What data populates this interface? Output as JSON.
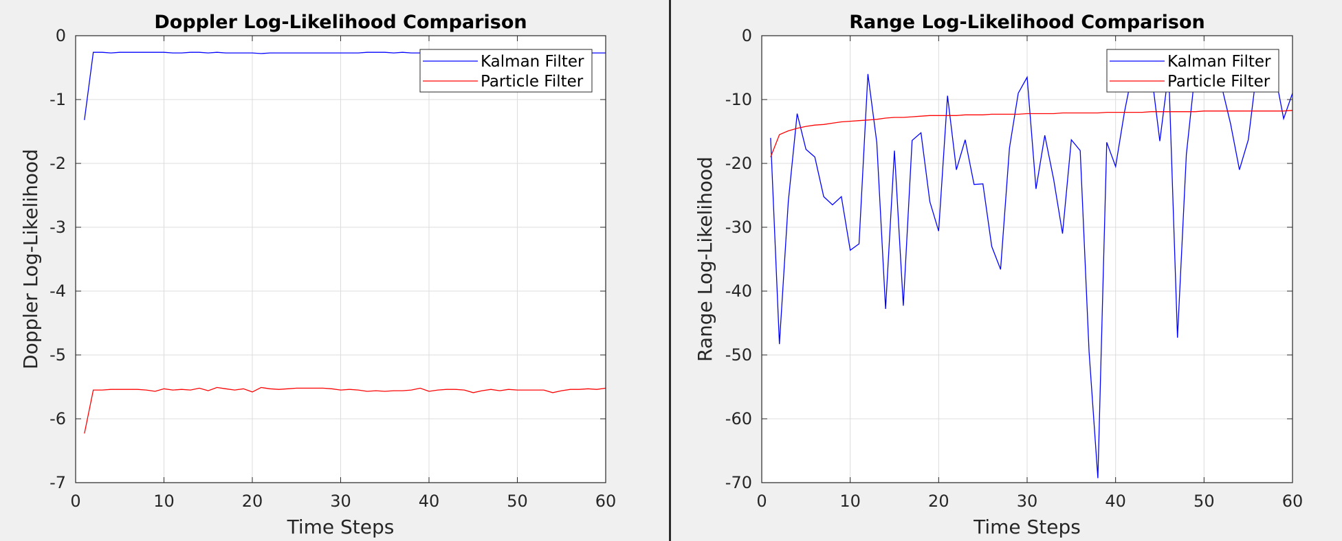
{
  "chart_data": [
    {
      "type": "line",
      "title": "Doppler Log-Likelihood Comparison",
      "xlabel": "Time Steps",
      "ylabel": "Doppler Log-Likelihood",
      "xlim": [
        0,
        60
      ],
      "ylim": [
        -7,
        0
      ],
      "xticks": [
        0,
        10,
        20,
        30,
        40,
        50,
        60
      ],
      "yticks": [
        0,
        -1,
        -2,
        -3,
        -4,
        -5,
        -6,
        -7
      ],
      "grid": true,
      "legend_position": "top-right",
      "series": [
        {
          "name": "Kalman Filter",
          "color": "#0000ff",
          "x": [
            1,
            2,
            3,
            4,
            5,
            6,
            7,
            8,
            9,
            10,
            11,
            12,
            13,
            14,
            15,
            16,
            17,
            18,
            19,
            20,
            21,
            22,
            23,
            24,
            25,
            26,
            27,
            28,
            29,
            30,
            31,
            32,
            33,
            34,
            35,
            36,
            37,
            38,
            39,
            40,
            41,
            42,
            43,
            44,
            45,
            46,
            47,
            48,
            49,
            50,
            51,
            52,
            53,
            54,
            55,
            56,
            57,
            58,
            59,
            60
          ],
          "values": [
            -1.32,
            -0.26,
            -0.26,
            -0.27,
            -0.26,
            -0.26,
            -0.26,
            -0.26,
            -0.26,
            -0.26,
            -0.27,
            -0.27,
            -0.26,
            -0.26,
            -0.27,
            -0.26,
            -0.27,
            -0.27,
            -0.27,
            -0.27,
            -0.28,
            -0.27,
            -0.27,
            -0.27,
            -0.27,
            -0.27,
            -0.27,
            -0.27,
            -0.27,
            -0.27,
            -0.27,
            -0.27,
            -0.26,
            -0.26,
            -0.26,
            -0.27,
            -0.26,
            -0.27,
            -0.27,
            -0.27,
            -0.27,
            -0.27,
            -0.27,
            -0.27,
            -0.27,
            -0.26,
            -0.27,
            -0.27,
            -0.27,
            -0.27,
            -0.27,
            -0.27,
            -0.27,
            -0.27,
            -0.27,
            -0.27,
            -0.27,
            -0.27,
            -0.27,
            -0.27
          ]
        },
        {
          "name": "Particle Filter",
          "color": "#ff0000",
          "x": [
            1,
            2,
            3,
            4,
            5,
            6,
            7,
            8,
            9,
            10,
            11,
            12,
            13,
            14,
            15,
            16,
            17,
            18,
            19,
            20,
            21,
            22,
            23,
            24,
            25,
            26,
            27,
            28,
            29,
            30,
            31,
            32,
            33,
            34,
            35,
            36,
            37,
            38,
            39,
            40,
            41,
            42,
            43,
            44,
            45,
            46,
            47,
            48,
            49,
            50,
            51,
            52,
            53,
            54,
            55,
            56,
            57,
            58,
            59,
            60
          ],
          "values": [
            -6.23,
            -5.55,
            -5.55,
            -5.54,
            -5.54,
            -5.54,
            -5.54,
            -5.55,
            -5.57,
            -5.53,
            -5.55,
            -5.54,
            -5.55,
            -5.52,
            -5.56,
            -5.51,
            -5.53,
            -5.55,
            -5.53,
            -5.58,
            -5.51,
            -5.53,
            -5.54,
            -5.53,
            -5.52,
            -5.52,
            -5.52,
            -5.52,
            -5.53,
            -5.55,
            -5.54,
            -5.55,
            -5.57,
            -5.56,
            -5.57,
            -5.56,
            -5.56,
            -5.55,
            -5.52,
            -5.57,
            -5.55,
            -5.54,
            -5.54,
            -5.55,
            -5.59,
            -5.56,
            -5.54,
            -5.56,
            -5.54,
            -5.55,
            -5.55,
            -5.55,
            -5.55,
            -5.59,
            -5.56,
            -5.54,
            -5.54,
            -5.53,
            -5.54,
            -5.52
          ]
        }
      ]
    },
    {
      "type": "line",
      "title": "Range Log-Likelihood Comparison",
      "xlabel": "Time Steps",
      "ylabel": "Range Log-Likelihood",
      "xlim": [
        0,
        60
      ],
      "ylim": [
        -70,
        0
      ],
      "xticks": [
        0,
        10,
        20,
        30,
        40,
        50,
        60
      ],
      "yticks": [
        0,
        -10,
        -20,
        -30,
        -40,
        -50,
        -60,
        -70
      ],
      "grid": true,
      "legend_position": "top-right",
      "series": [
        {
          "name": "Kalman Filter",
          "color": "#0000ff",
          "x": [
            1,
            2,
            3,
            4,
            5,
            6,
            7,
            8,
            9,
            10,
            11,
            12,
            13,
            14,
            15,
            16,
            17,
            18,
            19,
            20,
            21,
            22,
            23,
            24,
            25,
            26,
            27,
            28,
            29,
            30,
            31,
            32,
            33,
            34,
            35,
            36,
            37,
            38,
            39,
            40,
            41,
            42,
            43,
            44,
            45,
            46,
            47,
            48,
            49,
            50,
            51,
            52,
            53,
            54,
            55,
            56,
            57,
            58,
            59,
            60
          ],
          "values": [
            -16,
            -48.3,
            -26,
            -12.2,
            -17.8,
            -19,
            -25.2,
            -26.5,
            -25.2,
            -33.6,
            -32.6,
            -6,
            -16.7,
            -42.8,
            -18,
            -42.3,
            -16.4,
            -15.2,
            -26,
            -30.6,
            -9.4,
            -21,
            -16.3,
            -23.3,
            -23.2,
            -33,
            -36.6,
            -17.6,
            -9,
            -6.5,
            -24,
            -15.6,
            -22.5,
            -31,
            -16.3,
            -18,
            -49.5,
            -69.3,
            -16.7,
            -20.5,
            -12,
            -5,
            -5.5,
            -5.2,
            -16.5,
            -5.5,
            -47.3,
            -18.6,
            -5.5,
            -5,
            -5.5,
            -8,
            -13.8,
            -21,
            -16.3,
            -5,
            -5,
            -5.8,
            -13,
            -9
          ]
        },
        {
          "name": "Particle Filter",
          "color": "#ff0000",
          "x": [
            1,
            2,
            3,
            4,
            5,
            6,
            7,
            8,
            9,
            10,
            11,
            12,
            13,
            14,
            15,
            16,
            17,
            18,
            19,
            20,
            21,
            22,
            23,
            24,
            25,
            26,
            27,
            28,
            29,
            30,
            31,
            32,
            33,
            34,
            35,
            36,
            37,
            38,
            39,
            40,
            41,
            42,
            43,
            44,
            45,
            46,
            47,
            48,
            49,
            50,
            51,
            52,
            53,
            54,
            55,
            56,
            57,
            58,
            59,
            60
          ],
          "values": [
            -19,
            -15.5,
            -14.9,
            -14.5,
            -14.2,
            -14,
            -13.9,
            -13.7,
            -13.5,
            -13.4,
            -13.3,
            -13.2,
            -13.1,
            -12.9,
            -12.8,
            -12.8,
            -12.7,
            -12.6,
            -12.5,
            -12.5,
            -12.5,
            -12.5,
            -12.4,
            -12.4,
            -12.4,
            -12.3,
            -12.3,
            -12.3,
            -12.3,
            -12.2,
            -12.2,
            -12.2,
            -12.2,
            -12.1,
            -12.1,
            -12.1,
            -12.1,
            -12.1,
            -12.0,
            -12.0,
            -12.0,
            -12.0,
            -12.0,
            -11.9,
            -11.9,
            -11.9,
            -11.9,
            -11.9,
            -11.9,
            -11.8,
            -11.8,
            -11.8,
            -11.8,
            -11.8,
            -11.8,
            -11.8,
            -11.8,
            -11.8,
            -11.8,
            -11.7
          ]
        }
      ]
    }
  ]
}
